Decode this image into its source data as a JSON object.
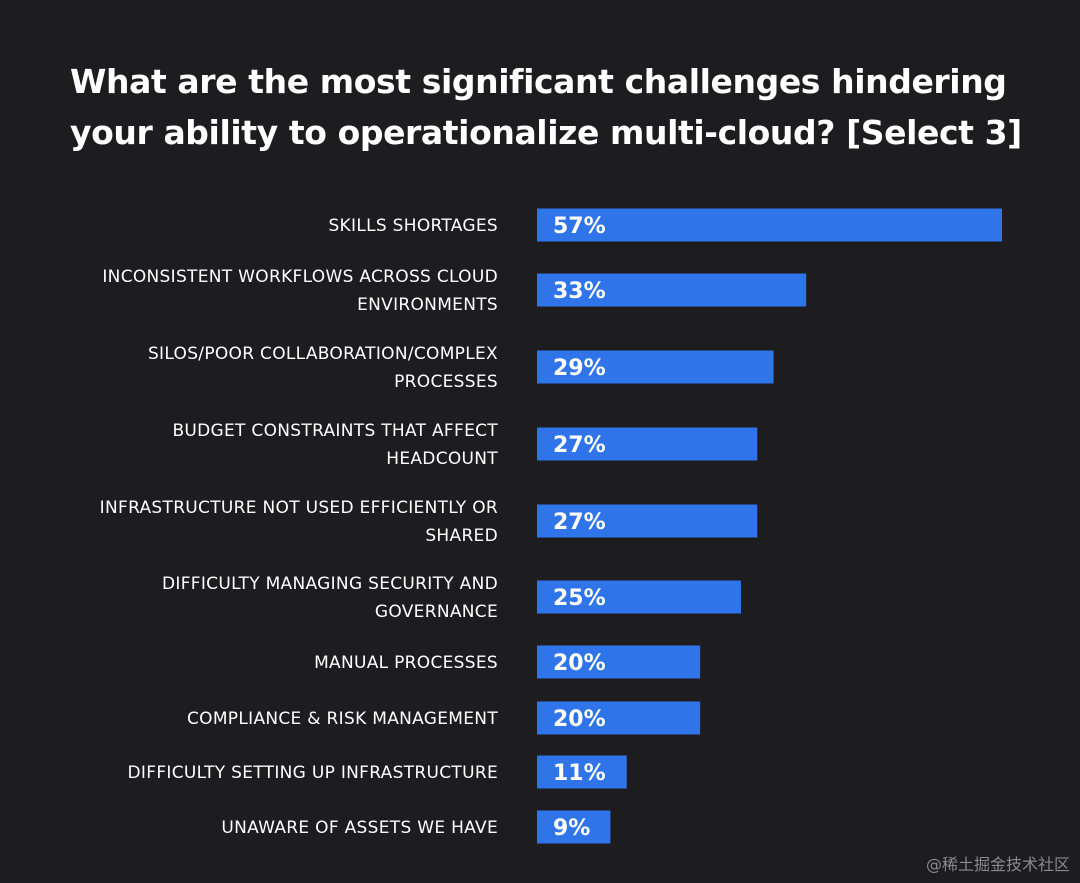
{
  "chart_data": {
    "type": "bar",
    "orientation": "horizontal",
    "title": "What are the most significant challenges hindering your ability to operationalize multi-cloud? [Select 3]",
    "categories": [
      "SKILLS SHORTAGES",
      "INCONSISTENT WORKFLOWS ACROSS CLOUD ENVIRONMENTS",
      "SILOS/POOR COLLABORATION/COMPLEX PROCESSES",
      "BUDGET CONSTRAINTS THAT AFFECT HEADCOUNT",
      "INFRASTRUCTURE NOT USED EFFICIENTLY OR SHARED",
      "DIFFICULTY MANAGING SECURITY AND GOVERNANCE",
      "MANUAL PROCESSES",
      "COMPLIANCE & RISK MANAGEMENT",
      "DIFFICULTY SETTING UP INFRASTRUCTURE",
      "UNAWARE OF ASSETS WE HAVE"
    ],
    "category_lines": [
      [
        "SKILLS SHORTAGES"
      ],
      [
        "INCONSISTENT WORKFLOWS ACROSS CLOUD",
        "ENVIRONMENTS"
      ],
      [
        "SILOS/POOR COLLABORATION/COMPLEX",
        "PROCESSES"
      ],
      [
        "BUDGET CONSTRAINTS THAT AFFECT",
        "HEADCOUNT"
      ],
      [
        "INFRASTRUCTURE NOT USED EFFICIENTLY OR",
        "SHARED"
      ],
      [
        "DIFFICULTY MANAGING SECURITY AND",
        "GOVERNANCE"
      ],
      [
        "MANUAL PROCESSES"
      ],
      [
        "COMPLIANCE & RISK MANAGEMENT"
      ],
      [
        "DIFFICULTY SETTING UP INFRASTRUCTURE"
      ],
      [
        "UNAWARE OF ASSETS WE HAVE"
      ]
    ],
    "values": [
      57,
      33,
      29,
      27,
      27,
      25,
      20,
      20,
      11,
      9
    ],
    "value_labels": [
      "57%",
      "33%",
      "29%",
      "27%",
      "27%",
      "25%",
      "20%",
      "20%",
      "11%",
      "9%"
    ],
    "unit": "%",
    "xlim": [
      0,
      57
    ],
    "grid": false,
    "legend": "none",
    "colors": {
      "bar": "#2f74e8",
      "background": "#1d1d1f",
      "text": "#ffffff"
    }
  },
  "watermark": "@稀土掘金技术社区"
}
